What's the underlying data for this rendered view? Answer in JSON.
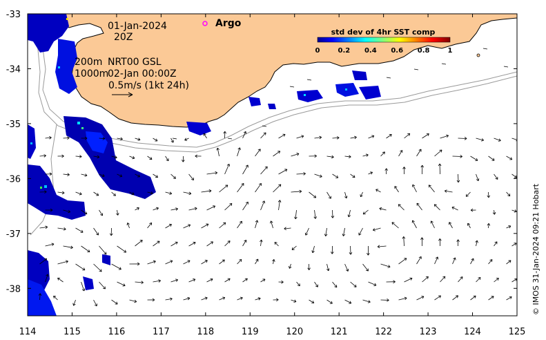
{
  "map": {
    "date_label": "01-Jan-2024",
    "time_label": "20Z",
    "argo_label": "Argo",
    "depth_label_1": "200m",
    "depth_label_2": "1000m",
    "product_label": "NRT00 GSL",
    "product_time": "02-Jan 00:00Z",
    "scale_label": "0.5m/s (1kt 24h)",
    "credit": "© IMOS 31-Jan-2024 09:21 Hobart",
    "x_ticks": [
      "114",
      "115",
      "116",
      "117",
      "118",
      "119",
      "120",
      "121",
      "122",
      "123",
      "124",
      "125"
    ],
    "y_ticks": [
      "-33",
      "-34",
      "-35",
      "-36",
      "-37",
      "-38"
    ],
    "xlim": [
      114,
      125
    ],
    "ylim": [
      -38.5,
      -33
    ],
    "colors": {
      "land": "#fbc996",
      "coast": "#000000",
      "isobath": "#999999",
      "argo": "#ff00ff"
    }
  },
  "colorbar": {
    "title": "std dev of 4hr SST comp",
    "ticks": [
      "0",
      "0.2",
      "0.4",
      "0.6",
      "0.8",
      "1"
    ],
    "range": [
      0,
      1
    ],
    "colormap": "jet"
  }
}
